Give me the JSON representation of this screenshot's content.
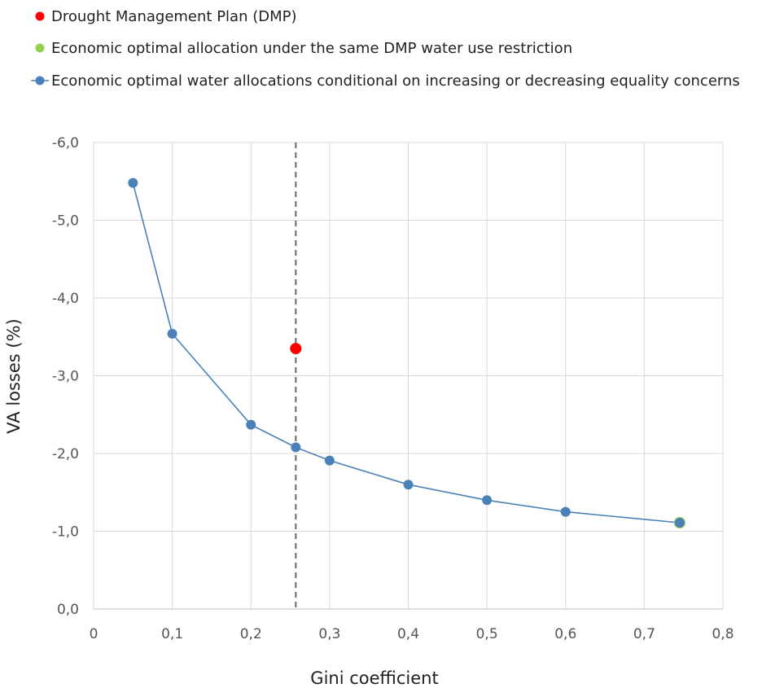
{
  "chart_data": {
    "type": "scatter",
    "xlabel": "Gini coefficient",
    "ylabel": "VA losses (%)",
    "xlim": [
      0,
      0.8
    ],
    "ylim": [
      0,
      -6
    ],
    "y_axis_inverted": true,
    "grid": true,
    "legend_position": "top-left",
    "x_ticks": [
      "0",
      "0,1",
      "0,2",
      "0,3",
      "0,4",
      "0,5",
      "0,6",
      "0,7",
      "0,8"
    ],
    "y_ticks": [
      "0,0",
      "-1,0",
      "-2,0",
      "-3,0",
      "-4,0",
      "-5,0",
      "-6,0"
    ],
    "reference_line": {
      "style": "dashed",
      "x": 0.257
    },
    "series": [
      {
        "name": "Drought Management Plan (DMP)",
        "kind": "scatter",
        "color": "#ff0000",
        "points": [
          {
            "x": 0.257,
            "y": -3.35
          }
        ]
      },
      {
        "name": "Economic optimal allocation under the same DMP water use restriction",
        "kind": "scatter",
        "color": "#92d050",
        "points": [
          {
            "x": 0.745,
            "y": -1.11
          }
        ]
      },
      {
        "name": "Economic optimal water allocations conditional on increasing or decreasing equality concerns",
        "kind": "line-markers",
        "color": "#4a81b8",
        "points": [
          {
            "x": 0.05,
            "y": -5.48
          },
          {
            "x": 0.1,
            "y": -3.54
          },
          {
            "x": 0.2,
            "y": -2.37
          },
          {
            "x": 0.257,
            "y": -2.08
          },
          {
            "x": 0.3,
            "y": -1.91
          },
          {
            "x": 0.4,
            "y": -1.6
          },
          {
            "x": 0.5,
            "y": -1.4
          },
          {
            "x": 0.6,
            "y": -1.25
          },
          {
            "x": 0.745,
            "y": -1.11
          }
        ]
      }
    ]
  }
}
